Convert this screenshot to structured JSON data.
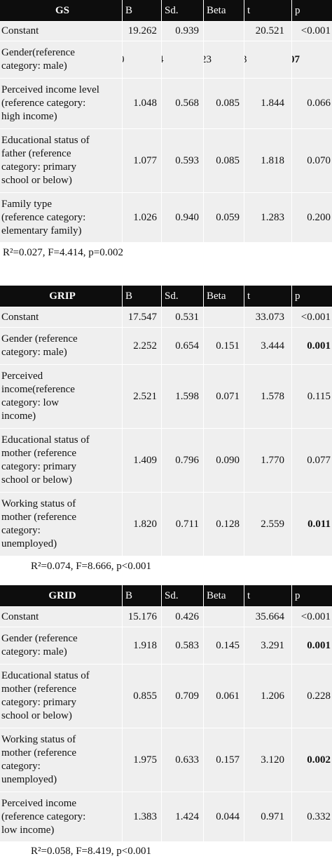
{
  "headers": [
    "B",
    "Sd.",
    "Beta",
    "t",
    "p"
  ],
  "tables": [
    {
      "title": "GS",
      "rows": [
        {
          "label": "Constant",
          "b": "19.262",
          "sd": "0.939",
          "beta": "",
          "t": "20.521",
          "p": "<0.001",
          "bold_p": false
        },
        {
          "label": "Gender(reference\ncategory: male)",
          "b": "0",
          "sd": "4",
          "beta": "23",
          "t": "3",
          "p": "07",
          "bold_p": true,
          "partial": true
        },
        {
          "label": "Perceived income level\n(reference category:\nhigh income)",
          "b": "1.048",
          "sd": "0.568",
          "beta": "0.085",
          "t": "1.844",
          "p": "0.066",
          "bold_p": false
        },
        {
          "label": "Educational status of\nfather (reference\ncategory: primary\nschool or below)",
          "b": "1.077",
          "sd": "0.593",
          "beta": "0.085",
          "t": "1.818",
          "p": "0.070",
          "bold_p": false
        },
        {
          "label": "Family type\n(reference category:\nelementary family)",
          "b": "1.026",
          "sd": "0.940",
          "beta": "0.059",
          "t": "1.283",
          "p": "0.200",
          "bold_p": false
        }
      ],
      "footer": "R²=0.027, F=4.414, p=0.002"
    },
    {
      "title": "GRIP",
      "rows": [
        {
          "label": "Constant",
          "b": "17.547",
          "sd": "0.531",
          "beta": "",
          "t": "33.073",
          "p": "<0.001",
          "bold_p": false
        },
        {
          "label": "Gender (reference\ncategory: male)",
          "b": "2.252",
          "sd": "0.654",
          "beta": "0.151",
          "t": "3.444",
          "p": "0.001",
          "bold_p": true
        },
        {
          "label": "Perceived\nincome(reference\ncategory: low\nincome)",
          "b": "2.521",
          "sd": "1.598",
          "beta": "0.071",
          "t": "1.578",
          "p": "0.115",
          "bold_p": false
        },
        {
          "label": "Educational status of\nmother (reference\ncategory: primary\nschool or below)",
          "b": "1.409",
          "sd": "0.796",
          "beta": "0.090",
          "t": "1.770",
          "p": "0.077",
          "bold_p": false
        },
        {
          "label": "Working status of\nmother (reference\ncategory:\nunemployed)",
          "b": "1.820",
          "sd": "0.711",
          "beta": "0.128",
          "t": "2.559",
          "p": "0.011",
          "bold_p": true
        }
      ],
      "footer": "R²=0.074, F=8.666, p<0.001"
    },
    {
      "title": "GRID",
      "rows": [
        {
          "label": "Constant",
          "b": "15.176",
          "sd": "0.426",
          "beta": "",
          "t": "35.664",
          "p": "<0.001",
          "bold_p": false
        },
        {
          "label": "Gender (reference\ncategory: male)",
          "b": "1.918",
          "sd": "0.583",
          "beta": "0.145",
          "t": "3.291",
          "p": "0.001",
          "bold_p": true
        },
        {
          "label": "Educational status of\nmother (reference\ncategory: primary\nschool or below)",
          "b": "0.855",
          "sd": "0.709",
          "beta": "0.061",
          "t": "1.206",
          "p": "0.228",
          "bold_p": false
        },
        {
          "label": "Working status of\nmother (reference\ncategory:\nunemployed)",
          "b": "1.975",
          "sd": "0.633",
          "beta": "0.157",
          "t": "3.120",
          "p": "0.002",
          "bold_p": true
        },
        {
          "label": "Perceived income\n(reference category:\nlow income)",
          "b": "1.383",
          "sd": "1.424",
          "beta": "0.044",
          "t": "0.971",
          "p": "0.332",
          "bold_p": false
        }
      ],
      "footer": "R²=0.058, F=8.419, p<0.001"
    }
  ]
}
